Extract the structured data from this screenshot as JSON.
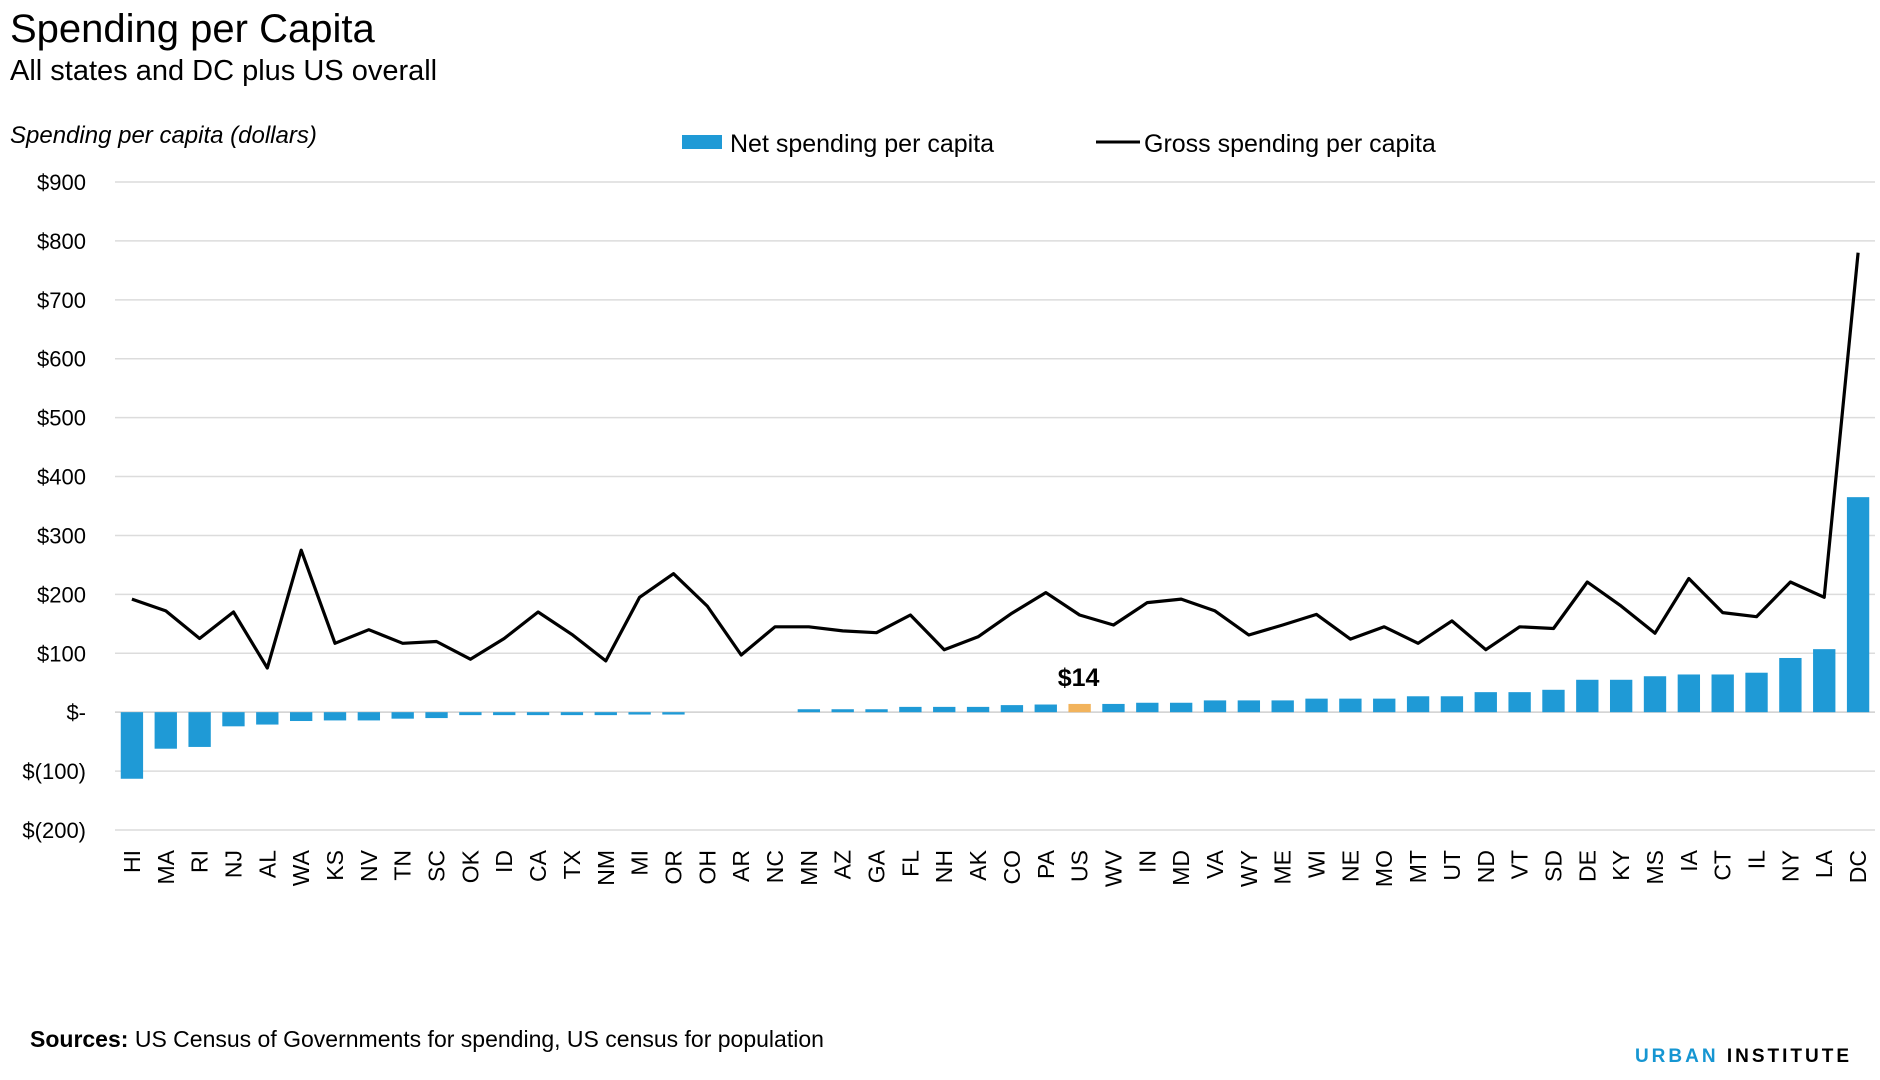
{
  "header": {
    "title": "Spending per Capita",
    "subtitle": "All states and DC plus US overall"
  },
  "footer": {
    "sources_label": "Sources:",
    "sources_text": "US Census of Governments for spending, US census for population",
    "brand_part1": "URBAN",
    "brand_part2": "INSTITUTE"
  },
  "colors": {
    "net_bar": "#1f9ad6",
    "highlight_bar": "#f2b35c",
    "gross_line": "#000000",
    "grid": "#dcdcdc"
  },
  "chart_data": {
    "type": "bar",
    "ylabel": "Spending per capita (dollars)",
    "ylim": [
      -200,
      900
    ],
    "yticks": [
      900,
      800,
      700,
      600,
      500,
      400,
      300,
      200,
      100,
      0,
      -100,
      -200
    ],
    "ytick_labels": [
      "$900",
      "$800",
      "$700",
      "$600",
      "$500",
      "$400",
      "$300",
      "$200",
      "$100",
      "$-",
      "$(100)",
      "$(200)"
    ],
    "grid": true,
    "legend_position": "top",
    "categories": [
      "HI",
      "MA",
      "RI",
      "NJ",
      "AL",
      "WA",
      "KS",
      "NV",
      "TN",
      "SC",
      "OK",
      "ID",
      "CA",
      "TX",
      "NM",
      "MI",
      "OR",
      "OH",
      "AR",
      "NC",
      "MN",
      "AZ",
      "GA",
      "FL",
      "NH",
      "AK",
      "CO",
      "PA",
      "US",
      "WV",
      "IN",
      "MD",
      "VA",
      "WY",
      "ME",
      "WI",
      "NE",
      "MO",
      "MT",
      "UT",
      "ND",
      "VT",
      "SD",
      "DE",
      "KY",
      "MS",
      "IA",
      "CT",
      "IL",
      "NY",
      "LA",
      "DC"
    ],
    "highlight_category": "US",
    "annotation": {
      "category": "US",
      "text": "$14"
    },
    "series": [
      {
        "name": "Net spending per capita",
        "type": "bar",
        "values": [
          -113,
          -62,
          -59,
          -24,
          -21,
          -15,
          -14,
          -14,
          -11,
          -10,
          -5,
          -5,
          -5,
          -5,
          -5,
          -4,
          -4,
          0,
          0,
          0,
          5,
          5,
          5,
          9,
          9,
          9,
          12,
          13,
          14,
          14,
          16,
          16,
          20,
          20,
          20,
          23,
          23,
          23,
          27,
          27,
          34,
          34,
          38,
          55,
          55,
          61,
          64,
          64,
          67,
          92,
          107,
          365
        ]
      },
      {
        "name": "Gross spending per capita",
        "type": "line",
        "values": [
          192,
          172,
          125,
          170,
          75,
          275,
          117,
          140,
          117,
          120,
          90,
          125,
          170,
          132,
          87,
          195,
          235,
          180,
          97,
          145,
          145,
          138,
          135,
          165,
          106,
          128,
          168,
          203,
          165,
          148,
          186,
          192,
          172,
          131,
          148,
          166,
          124,
          145,
          117,
          155,
          106,
          145,
          142,
          221,
          180,
          134,
          227,
          169,
          162,
          221,
          195,
          780
        ]
      }
    ]
  }
}
